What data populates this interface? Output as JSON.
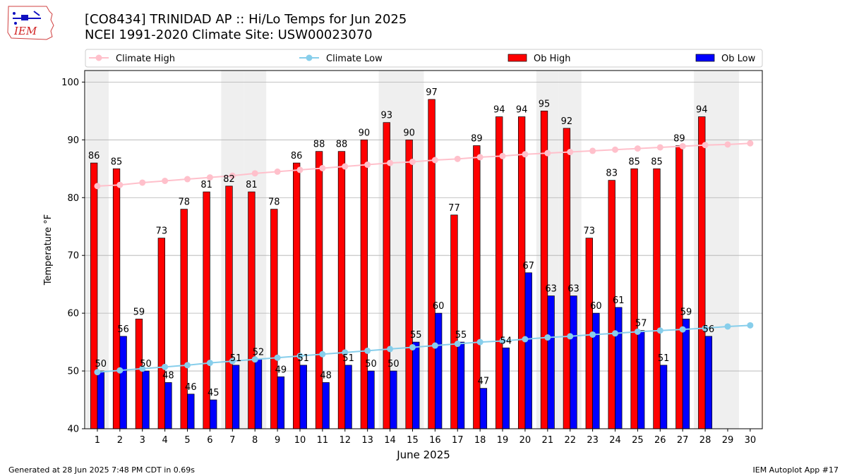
{
  "header": {
    "title_line1": "[CO8434] TRINIDAD AP :: Hi/Lo Temps for Jun 2025",
    "title_line2": "NCEI 1991-2020 Climate Site: USW00023070",
    "logo_text": "IEM"
  },
  "footer": {
    "generated": "Generated at 28 Jun 2025 7:48 PM CDT in 0.69s",
    "app": "IEM Autoplot App #17"
  },
  "chart_data": {
    "type": "bar",
    "xlabel": "June 2025",
    "ylabel": "Temperature °F",
    "ylim": [
      40,
      102
    ],
    "yticks": [
      40,
      50,
      60,
      70,
      80,
      90,
      100
    ],
    "days": [
      1,
      2,
      3,
      4,
      5,
      6,
      7,
      8,
      9,
      10,
      11,
      12,
      13,
      14,
      15,
      16,
      17,
      18,
      19,
      20,
      21,
      22,
      23,
      24,
      25,
      26,
      27,
      28,
      29,
      30
    ],
    "weekend_days": [
      1,
      7,
      8,
      14,
      15,
      21,
      22,
      28,
      29
    ],
    "grid": true,
    "legend_position": "top",
    "series": [
      {
        "name": "Climate High",
        "type": "line",
        "color": "#ffc0cb",
        "values": [
          82.0,
          82.2,
          82.6,
          82.9,
          83.2,
          83.5,
          83.8,
          84.2,
          84.5,
          84.8,
          85.1,
          85.4,
          85.7,
          86.0,
          86.2,
          86.5,
          86.7,
          87.0,
          87.2,
          87.5,
          87.7,
          87.9,
          88.1,
          88.3,
          88.5,
          88.7,
          88.9,
          89.1,
          89.2,
          89.4
        ]
      },
      {
        "name": "Climate Low",
        "type": "line",
        "color": "#87ceeb",
        "values": [
          49.8,
          50.1,
          50.4,
          50.7,
          51.0,
          51.4,
          51.7,
          52.0,
          52.3,
          52.6,
          52.9,
          53.2,
          53.5,
          53.8,
          54.1,
          54.4,
          54.7,
          55.0,
          55.2,
          55.5,
          55.8,
          56.0,
          56.3,
          56.5,
          56.8,
          57.0,
          57.2,
          57.4,
          57.7,
          57.9
        ]
      },
      {
        "name": "Ob High",
        "type": "bar",
        "color": "#ff0000",
        "values": [
          86,
          85,
          59,
          73,
          78,
          81,
          82,
          81,
          78,
          86,
          88,
          88,
          90,
          93,
          90,
          97,
          77,
          89,
          94,
          94,
          95,
          92,
          73,
          83,
          85,
          85,
          89,
          94
        ]
      },
      {
        "name": "Ob Low",
        "type": "bar",
        "color": "#0000ff",
        "values": [
          50,
          56,
          50,
          48,
          46,
          45,
          51,
          52,
          49,
          51,
          48,
          51,
          50,
          50,
          55,
          60,
          55,
          47,
          54,
          67,
          63,
          63,
          60,
          61,
          57,
          51,
          59,
          56
        ]
      }
    ]
  }
}
